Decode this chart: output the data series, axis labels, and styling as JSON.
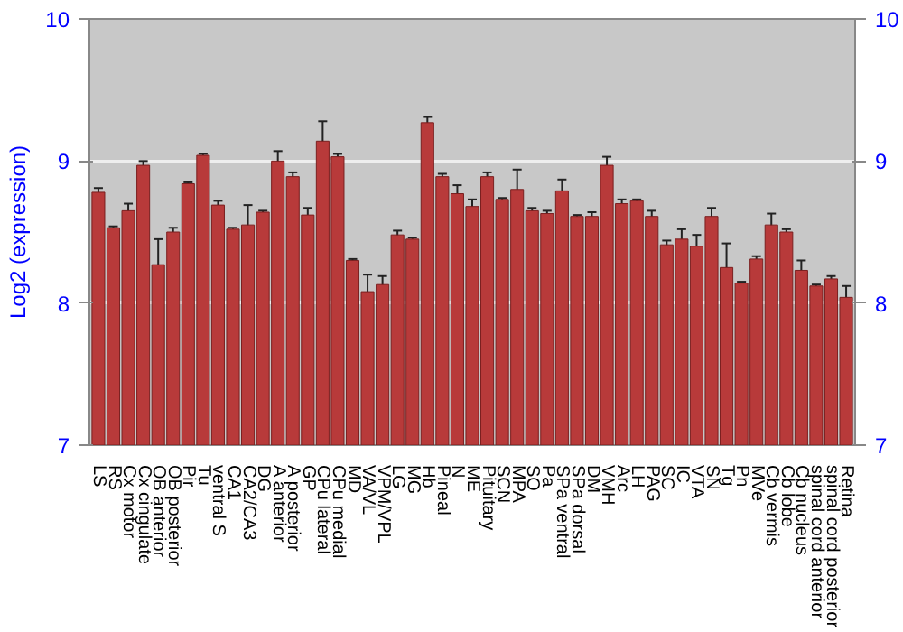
{
  "chart_data": {
    "type": "bar",
    "ylabel": "Log2 (expression)",
    "categories": [
      "LS",
      "RS",
      "Cx motor",
      "Cx cingulate",
      "OB anterior",
      "OB posterior",
      "Pir",
      "Tu",
      "ventral S",
      "CA1",
      "CA2/CA3",
      "DG",
      "A anterior",
      "A posterior",
      "GP",
      "CPu lateral",
      "CPu medial",
      "MD",
      "VA/VL",
      "VPM/VPL",
      "LG",
      "MG",
      "Hb",
      "Pineal",
      "N",
      "ME",
      "Pituitary",
      "SCN",
      "MPA",
      "SO",
      "Pa",
      "SPa ventral",
      "SPa dorsal",
      "DM",
      "VMH",
      "Arc",
      "LH",
      "PAG",
      "SC",
      "IC",
      "VTA",
      "SN",
      "Tg",
      "Pn",
      "MVe",
      "Cb vermis",
      "Cb lobe",
      "Cb nucleus",
      "spinal cord anterior",
      "spinal cord posterior",
      "Retina"
    ],
    "values": [
      8.78,
      8.53,
      8.65,
      8.97,
      8.27,
      8.5,
      8.84,
      9.04,
      8.69,
      8.52,
      8.55,
      8.64,
      9.0,
      8.89,
      8.62,
      9.14,
      9.03,
      8.3,
      8.08,
      8.13,
      8.48,
      8.45,
      9.27,
      8.89,
      8.77,
      8.68,
      8.89,
      8.73,
      8.8,
      8.65,
      8.63,
      8.79,
      8.61,
      8.61,
      8.97,
      8.7,
      8.72,
      8.61,
      8.41,
      8.45,
      8.4,
      8.61,
      8.25,
      8.14,
      8.31,
      8.55,
      8.5,
      8.23,
      8.12,
      8.17,
      8.04
    ],
    "errors": [
      0.03,
      0.01,
      0.05,
      0.03,
      0.18,
      0.03,
      0.01,
      0.01,
      0.03,
      0.01,
      0.14,
      0.01,
      0.07,
      0.03,
      0.05,
      0.14,
      0.02,
      0.01,
      0.12,
      0.06,
      0.03,
      0.01,
      0.04,
      0.02,
      0.06,
      0.05,
      0.03,
      0.01,
      0.14,
      0.02,
      0.02,
      0.08,
      0.01,
      0.03,
      0.06,
      0.03,
      0.01,
      0.04,
      0.03,
      0.07,
      0.08,
      0.06,
      0.17,
      0.01,
      0.02,
      0.08,
      0.02,
      0.07,
      0.01,
      0.02,
      0.08
    ],
    "color": "#b83a3a",
    "ylim": [
      7,
      10
    ],
    "yticks": [
      7,
      8,
      9,
      10
    ],
    "y2lim": [
      7,
      10
    ],
    "y2ticks": [
      7,
      8,
      9,
      10
    ],
    "grid": "y"
  }
}
